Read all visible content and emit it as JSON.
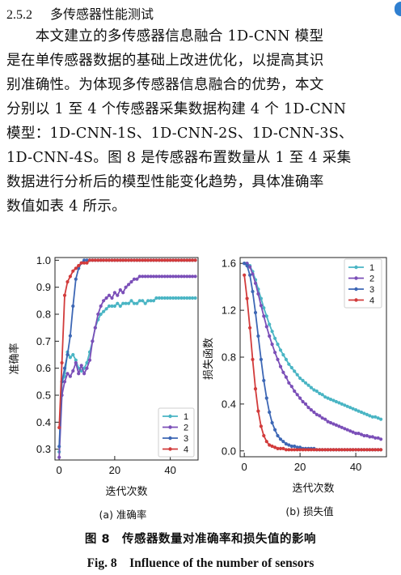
{
  "section": {
    "number": "2.5.2",
    "title": "多传感器性能测试"
  },
  "paragraph_lines": [
    "　　本文建立的多传感器信息融合 1D-CNN 模型",
    "是在单传感器数据的基础上改进优化，以提高其识",
    "别准确性。为体现多传感器信息融合的优势，本文",
    "分别以 1 至 4 个传感器采集数据构建 4 个 1D-CNN",
    "模型：1D-CNN-1S、1D-CNN-2S、1D-CNN-3S、",
    "1D-CNN-4S。图 8 是传感器布置数量从 1 至 4 采集",
    "数据进行分析后的模型性能变化趋势，具体准确率",
    "数值如表 4 所示。"
  ],
  "figure": {
    "caption_zh": "图 8　传感器数量对准确率和损失值的影响",
    "caption_en": "Fig. 8　Influence of the number of sensors"
  },
  "colors": {
    "s1": "#4ab5c4",
    "s2": "#7b4fb8",
    "s3": "#3d67b5",
    "s4": "#d23b3b"
  },
  "chart_data": [
    {
      "type": "line",
      "subtitle": "(a)  准确率",
      "xlabel": "迭代次数",
      "ylabel": "准确率",
      "xlim": [
        -1.5,
        50
      ],
      "ylim": [
        0.26,
        1.01
      ],
      "xticks": [
        0,
        20,
        40
      ],
      "yticks": [
        0.3,
        0.4,
        0.5,
        0.6,
        0.7,
        0.8,
        0.9,
        1.0
      ],
      "ytick_labels": [
        "0.3",
        "0.4",
        "0.5",
        "0.6",
        "0.7",
        "0.8",
        "0.9",
        "1.0"
      ],
      "legend": {
        "placement": "bottom-right",
        "labels": [
          "1",
          "2",
          "3",
          "4"
        ]
      },
      "series": [
        {
          "name": "1",
          "x": [
            0,
            1,
            2,
            3,
            4,
            5,
            6,
            7,
            8,
            9,
            10,
            11,
            12,
            13,
            14,
            15,
            16,
            17,
            18,
            19,
            20,
            21,
            22,
            23,
            24,
            25,
            26,
            27,
            28,
            29,
            30,
            31,
            32,
            33,
            34,
            35,
            36,
            37,
            38,
            39,
            40,
            41,
            42,
            43,
            44,
            45,
            46,
            47,
            48,
            49
          ],
          "y": [
            0.29,
            0.55,
            0.57,
            0.66,
            0.64,
            0.65,
            0.63,
            0.6,
            0.59,
            0.6,
            0.62,
            0.66,
            0.7,
            0.75,
            0.78,
            0.8,
            0.81,
            0.82,
            0.83,
            0.83,
            0.83,
            0.84,
            0.83,
            0.84,
            0.84,
            0.84,
            0.85,
            0.84,
            0.84,
            0.85,
            0.85,
            0.84,
            0.85,
            0.85,
            0.85,
            0.86,
            0.86,
            0.86,
            0.86,
            0.86,
            0.86,
            0.86,
            0.86,
            0.86,
            0.86,
            0.86,
            0.86,
            0.86,
            0.86,
            0.86
          ]
        },
        {
          "name": "2",
          "x": [
            0,
            1,
            2,
            3,
            4,
            5,
            6,
            7,
            8,
            9,
            10,
            11,
            12,
            13,
            14,
            15,
            16,
            17,
            18,
            19,
            20,
            21,
            22,
            23,
            24,
            25,
            26,
            27,
            28,
            29,
            30,
            31,
            32,
            33,
            34,
            35,
            36,
            37,
            38,
            39,
            40,
            41,
            42,
            43,
            44,
            45,
            46,
            47,
            48,
            49
          ],
          "y": [
            0.27,
            0.5,
            0.55,
            0.58,
            0.57,
            0.59,
            0.62,
            0.58,
            0.61,
            0.58,
            0.6,
            0.63,
            0.7,
            0.75,
            0.8,
            0.83,
            0.85,
            0.86,
            0.87,
            0.86,
            0.88,
            0.87,
            0.89,
            0.88,
            0.9,
            0.91,
            0.92,
            0.93,
            0.93,
            0.94,
            0.94,
            0.94,
            0.94,
            0.94,
            0.94,
            0.94,
            0.94,
            0.94,
            0.94,
            0.94,
            0.94,
            0.94,
            0.94,
            0.94,
            0.94,
            0.94,
            0.94,
            0.94,
            0.94,
            0.94
          ]
        },
        {
          "name": "3",
          "x": [
            0,
            1,
            2,
            3,
            4,
            5,
            6,
            7,
            8,
            9,
            10,
            11,
            12,
            13,
            14,
            15,
            16,
            17,
            18,
            19,
            20,
            21,
            22,
            23,
            24,
            25,
            26,
            27,
            28,
            29,
            30,
            31,
            32,
            33,
            34,
            35,
            36,
            37,
            38,
            39,
            40,
            41,
            42,
            43,
            44,
            45,
            46,
            47,
            48,
            49
          ],
          "y": [
            0.31,
            0.55,
            0.6,
            0.65,
            0.72,
            0.83,
            0.93,
            0.97,
            0.99,
            1.0,
            1.0,
            1.0,
            1.0,
            1.0,
            1.0,
            1.0,
            1.0,
            1.0,
            1.0,
            1.0,
            1.0,
            1.0,
            1.0,
            1.0,
            1.0,
            1.0,
            1.0,
            1.0,
            1.0,
            1.0,
            1.0,
            1.0,
            1.0,
            1.0,
            1.0,
            1.0,
            1.0,
            1.0,
            1.0,
            1.0,
            1.0,
            1.0,
            1.0,
            1.0,
            1.0,
            1.0,
            1.0,
            1.0,
            1.0,
            1.0
          ]
        },
        {
          "name": "4",
          "x": [
            0,
            1,
            2,
            3,
            4,
            5,
            6,
            7,
            8,
            9,
            10,
            11,
            12,
            13,
            14,
            15,
            16,
            17,
            18,
            19,
            20,
            21,
            22,
            23,
            24,
            25,
            26,
            27,
            28,
            29,
            30,
            31,
            32,
            33,
            34,
            35,
            36,
            37,
            38,
            39,
            40,
            41,
            42,
            43,
            44,
            45,
            46,
            47,
            48,
            49
          ],
          "y": [
            0.38,
            0.62,
            0.87,
            0.92,
            0.94,
            0.96,
            0.97,
            0.98,
            0.99,
            0.99,
            0.99,
            1.0,
            1.0,
            1.0,
            1.0,
            1.0,
            1.0,
            1.0,
            1.0,
            1.0,
            1.0,
            1.0,
            1.0,
            1.0,
            1.0,
            1.0,
            1.0,
            1.0,
            1.0,
            1.0,
            1.0,
            1.0,
            1.0,
            1.0,
            1.0,
            1.0,
            1.0,
            1.0,
            1.0,
            1.0,
            1.0,
            1.0,
            1.0,
            1.0,
            1.0,
            1.0,
            1.0,
            1.0,
            1.0,
            1.0
          ]
        }
      ]
    },
    {
      "type": "line",
      "subtitle": "(b)  损失值",
      "xlabel": "迭代次数",
      "ylabel": "损失函数",
      "xlim": [
        -1.5,
        51
      ],
      "ylim": [
        -0.05,
        1.65
      ],
      "xticks": [
        0,
        20,
        40
      ],
      "yticks": [
        0,
        0.4,
        0.8,
        1.2,
        1.6
      ],
      "ytick_labels": [
        "0.0",
        "0.4",
        "0.8",
        "1.2",
        "1.6"
      ],
      "legend": {
        "placement": "top-right",
        "labels": [
          "1",
          "2",
          "3",
          "4"
        ]
      },
      "series": [
        {
          "name": "1",
          "x": [
            0,
            1,
            2,
            3,
            4,
            5,
            6,
            7,
            8,
            9,
            10,
            11,
            12,
            13,
            14,
            15,
            16,
            17,
            18,
            19,
            20,
            21,
            22,
            23,
            24,
            25,
            26,
            27,
            28,
            29,
            30,
            31,
            32,
            33,
            34,
            35,
            36,
            37,
            38,
            39,
            40,
            41,
            42,
            43,
            44,
            45,
            46,
            47,
            48,
            49
          ],
          "y": [
            1.6,
            1.6,
            1.58,
            1.53,
            1.46,
            1.38,
            1.3,
            1.22,
            1.15,
            1.08,
            1.02,
            0.96,
            0.91,
            0.86,
            0.82,
            0.78,
            0.74,
            0.71,
            0.68,
            0.65,
            0.62,
            0.6,
            0.58,
            0.56,
            0.54,
            0.52,
            0.51,
            0.49,
            0.48,
            0.46,
            0.45,
            0.44,
            0.43,
            0.42,
            0.41,
            0.4,
            0.39,
            0.38,
            0.37,
            0.36,
            0.35,
            0.34,
            0.33,
            0.32,
            0.31,
            0.3,
            0.29,
            0.29,
            0.28,
            0.27
          ]
        },
        {
          "name": "2",
          "x": [
            0,
            1,
            2,
            3,
            4,
            5,
            6,
            7,
            8,
            9,
            10,
            11,
            12,
            13,
            14,
            15,
            16,
            17,
            18,
            19,
            20,
            21,
            22,
            23,
            24,
            25,
            26,
            27,
            28,
            29,
            30,
            31,
            32,
            33,
            34,
            35,
            36,
            37,
            38,
            39,
            40,
            41,
            42,
            43,
            44,
            45,
            46,
            47,
            48,
            49
          ],
          "y": [
            1.6,
            1.6,
            1.57,
            1.51,
            1.43,
            1.34,
            1.24,
            1.15,
            1.06,
            0.98,
            0.91,
            0.84,
            0.78,
            0.72,
            0.67,
            0.63,
            0.58,
            0.55,
            0.51,
            0.48,
            0.45,
            0.42,
            0.4,
            0.37,
            0.35,
            0.33,
            0.31,
            0.3,
            0.28,
            0.27,
            0.25,
            0.24,
            0.23,
            0.22,
            0.21,
            0.2,
            0.19,
            0.18,
            0.17,
            0.16,
            0.15,
            0.15,
            0.14,
            0.13,
            0.13,
            0.12,
            0.12,
            0.11,
            0.11,
            0.1
          ]
        },
        {
          "name": "3",
          "x": [
            0,
            1,
            2,
            3,
            4,
            5,
            6,
            7,
            8,
            9,
            10,
            11,
            12,
            13,
            14,
            15,
            16,
            17,
            18,
            19,
            20,
            21,
            22,
            23,
            24,
            25,
            26,
            27,
            28,
            29,
            30,
            31,
            32,
            33,
            34,
            35,
            36,
            37,
            38,
            39,
            40,
            41,
            42,
            43,
            44,
            45,
            46,
            47,
            48,
            49
          ],
          "y": [
            1.6,
            1.58,
            1.5,
            1.36,
            1.18,
            0.98,
            0.78,
            0.6,
            0.45,
            0.33,
            0.24,
            0.18,
            0.13,
            0.1,
            0.08,
            0.06,
            0.05,
            0.04,
            0.04,
            0.03,
            0.03,
            0.02,
            0.02,
            0.02,
            0.02,
            0.02,
            0.01,
            0.01,
            0.01,
            0.01,
            0.01,
            0.01,
            0.01,
            0.01,
            0.01,
            0.01,
            0.01,
            0.01,
            0.01,
            0.01,
            0.01,
            0.01,
            0.01,
            0.01,
            0.01,
            0.01,
            0.01,
            0.01,
            0.01,
            0.01
          ]
        },
        {
          "name": "4",
          "x": [
            0,
            1,
            2,
            3,
            4,
            5,
            6,
            7,
            8,
            9,
            10,
            11,
            12,
            13,
            14,
            15,
            16,
            17,
            18,
            19,
            20,
            21,
            22,
            23,
            24,
            25,
            26,
            27,
            28,
            29,
            30,
            31,
            32,
            33,
            34,
            35,
            36,
            37,
            38,
            39,
            40,
            41,
            42,
            43,
            44,
            45,
            46,
            47,
            48,
            49
          ],
          "y": [
            1.5,
            1.3,
            1.05,
            0.78,
            0.53,
            0.34,
            0.21,
            0.13,
            0.08,
            0.05,
            0.04,
            0.03,
            0.02,
            0.02,
            0.02,
            0.01,
            0.01,
            0.01,
            0.01,
            0.01,
            0.01,
            0.01,
            0.01,
            0.01,
            0.01,
            0.01,
            0.01,
            0.01,
            0.01,
            0.01,
            0.01,
            0.01,
            0.01,
            0.01,
            0.01,
            0.01,
            0.01,
            0.01,
            0.01,
            0.01,
            0.01,
            0.01,
            0.01,
            0.01,
            0.01,
            0.01,
            0.01,
            0.01,
            0.01,
            0.01
          ]
        }
      ]
    }
  ]
}
